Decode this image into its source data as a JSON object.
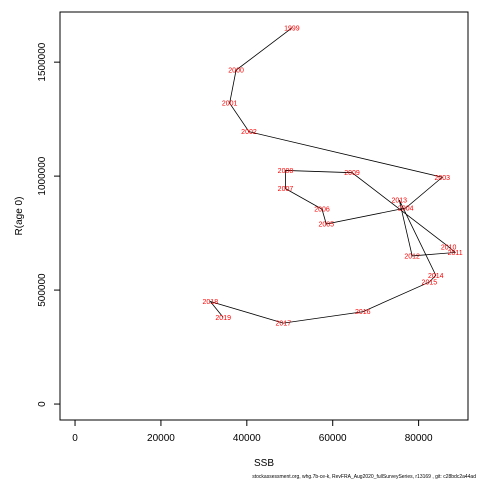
{
  "chart_data": {
    "type": "line",
    "xlabel": "SSB",
    "ylabel": "R(age 0)",
    "xlim": [
      -3500,
      91500
    ],
    "ylim": [
      -70000,
      1720000
    ],
    "x_ticks": [
      0,
      20000,
      40000,
      60000,
      80000
    ],
    "x_tick_labels": [
      "0",
      "20000",
      "40000",
      "60000",
      "80000"
    ],
    "y_ticks": [
      0,
      500000,
      1000000,
      1500000
    ],
    "y_tick_labels": [
      "0",
      "500000",
      "1000000",
      "1500000"
    ],
    "points": [
      {
        "label": "1999",
        "x": 50500,
        "y": 1650000
      },
      {
        "label": "2000",
        "x": 37500,
        "y": 1465000
      },
      {
        "label": "2001",
        "x": 36000,
        "y": 1320000
      },
      {
        "label": "2002",
        "x": 40500,
        "y": 1195000
      },
      {
        "label": "2003",
        "x": 85500,
        "y": 995000
      },
      {
        "label": "2004",
        "x": 77000,
        "y": 860000
      },
      {
        "label": "2005",
        "x": 58500,
        "y": 790000
      },
      {
        "label": "2006",
        "x": 57500,
        "y": 855000
      },
      {
        "label": "2007",
        "x": 49000,
        "y": 945000
      },
      {
        "label": "2008",
        "x": 49000,
        "y": 1025000
      },
      {
        "label": "2009",
        "x": 64500,
        "y": 1015000
      },
      {
        "label": "2010",
        "x": 87000,
        "y": 690000
      },
      {
        "label": "2011",
        "x": 88500,
        "y": 665000
      },
      {
        "label": "2012",
        "x": 78500,
        "y": 650000
      },
      {
        "label": "2013",
        "x": 75500,
        "y": 895000
      },
      {
        "label": "2014",
        "x": 84000,
        "y": 565000
      },
      {
        "label": "2015",
        "x": 82500,
        "y": 535000
      },
      {
        "label": "2016",
        "x": 67000,
        "y": 405000
      },
      {
        "label": "2017",
        "x": 48500,
        "y": 355000
      },
      {
        "label": "2018",
        "x": 31500,
        "y": 450000
      },
      {
        "label": "2019",
        "x": 34500,
        "y": 380000
      }
    ],
    "grid": false,
    "legend": "none"
  },
  "colors": {
    "point_labels": "#ff0000",
    "line": "#000000"
  },
  "footer_text": "stockassessment.org, whg.7b-ce-k, RevFRA_Aug2020_fullSurveySeries, r13169 , git: c28bdc2a44ad"
}
